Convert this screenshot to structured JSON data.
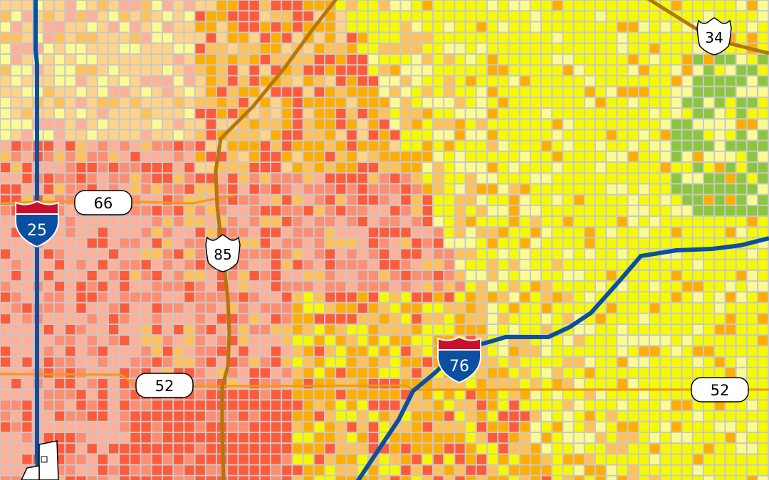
{
  "map": {
    "legend_shown": false,
    "palette": {
      "green": "#8cc63f",
      "yellow": "#f5fa00",
      "light_yellow": "#fbfb93",
      "peach": "#ffd38a",
      "orange_light": "#ffc15a",
      "orange": "#ffad00",
      "salmon_light": "#ffb098",
      "salmon": "#ff8d72",
      "red": "#ff5a3a",
      "grid_line": "#c8c8c8",
      "interstate_blue": "#0a4fa2",
      "interstate_red": "#c8102e",
      "us_route_brown": "#b5760a",
      "state_route_orange": "#f29a12",
      "boundary": "#000000"
    },
    "highways": {
      "interstates": [
        {
          "number": "25",
          "label": "25"
        },
        {
          "number": "76",
          "label": "76"
        }
      ],
      "us_routes": [
        {
          "number": "85",
          "label": "85"
        },
        {
          "number": "34",
          "label": "34"
        }
      ],
      "state_routes": [
        {
          "number": "66",
          "label": "66"
        },
        {
          "number": "52",
          "label": "52"
        },
        {
          "number": "52b",
          "label": "52"
        }
      ]
    }
  }
}
